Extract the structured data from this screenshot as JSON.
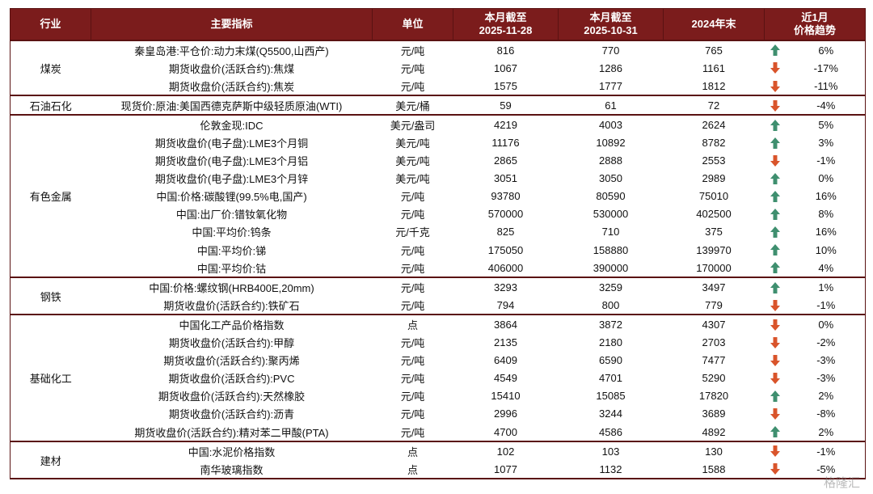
{
  "table": {
    "header": [
      "行业",
      "主要指标",
      "单位",
      "本月截至\n2025-11-28",
      "本月截至\n2025-10-31",
      "2024年末",
      "近1月\n价格趋势"
    ],
    "groups": [
      {
        "industry": "煤炭",
        "rows": [
          {
            "indicator": "秦皇岛港:平仓价:动力末煤(Q5500,山西产)",
            "unit": "元/吨",
            "values": [
              816,
              770,
              765
            ],
            "trend": "up",
            "change": "6%"
          },
          {
            "indicator": "期货收盘价(活跃合约):焦煤",
            "unit": "元/吨",
            "values": [
              1067,
              1286,
              1161
            ],
            "trend": "down",
            "change": "-17%"
          },
          {
            "indicator": "期货收盘价(活跃合约):焦炭",
            "unit": "元/吨",
            "values": [
              1575,
              1777,
              1812
            ],
            "trend": "down",
            "change": "-11%"
          }
        ]
      },
      {
        "industry": "石油石化",
        "rows": [
          {
            "indicator": "现货价:原油:美国西德克萨斯中级轻质原油(WTI)",
            "unit": "美元/桶",
            "values": [
              59,
              61,
              72
            ],
            "trend": "down",
            "change": "-4%"
          }
        ]
      },
      {
        "industry": "有色金属",
        "rows": [
          {
            "indicator": "伦敦金现:IDC",
            "unit": "美元/盎司",
            "values": [
              4219,
              4003,
              2624
            ],
            "trend": "up",
            "change": "5%"
          },
          {
            "indicator": "期货收盘价(电子盘):LME3个月铜",
            "unit": "美元/吨",
            "values": [
              11176,
              10892,
              8782
            ],
            "trend": "up",
            "change": "3%"
          },
          {
            "indicator": "期货收盘价(电子盘):LME3个月铝",
            "unit": "美元/吨",
            "values": [
              2865,
              2888,
              2553
            ],
            "trend": "down",
            "change": "-1%"
          },
          {
            "indicator": "期货收盘价(电子盘):LME3个月锌",
            "unit": "美元/吨",
            "values": [
              3051,
              3050,
              2989
            ],
            "trend": "up",
            "change": "0%"
          },
          {
            "indicator": "中国:价格:碳酸锂(99.5%电,国产)",
            "unit": "元/吨",
            "values": [
              93780,
              80590,
              75010
            ],
            "trend": "up",
            "change": "16%"
          },
          {
            "indicator": "中国:出厂价:镨钕氧化物",
            "unit": "元/吨",
            "values": [
              570000,
              530000,
              402500
            ],
            "trend": "up",
            "change": "8%"
          },
          {
            "indicator": "中国:平均价:钨条",
            "unit": "元/千克",
            "values": [
              825,
              710,
              375
            ],
            "trend": "up",
            "change": "16%"
          },
          {
            "indicator": "中国:平均价:锑",
            "unit": "元/吨",
            "values": [
              175050,
              158880,
              139970
            ],
            "trend": "up",
            "change": "10%"
          },
          {
            "indicator": "中国:平均价:钴",
            "unit": "元/吨",
            "values": [
              406000,
              390000,
              170000
            ],
            "trend": "up",
            "change": "4%"
          }
        ]
      },
      {
        "industry": "钢铁",
        "rows": [
          {
            "indicator": "中国:价格:螺纹钢(HRB400E,20mm)",
            "unit": "元/吨",
            "values": [
              3293,
              3259,
              3497
            ],
            "trend": "up",
            "change": "1%"
          },
          {
            "indicator": "期货收盘价(活跃合约):铁矿石",
            "unit": "元/吨",
            "values": [
              794,
              800,
              779
            ],
            "trend": "down",
            "change": "-1%"
          }
        ]
      },
      {
        "industry": "基础化工",
        "rows": [
          {
            "indicator": "中国化工产品价格指数",
            "unit": "点",
            "values": [
              3864,
              3872,
              4307
            ],
            "trend": "down",
            "change": "0%"
          },
          {
            "indicator": "期货收盘价(活跃合约):甲醇",
            "unit": "元/吨",
            "values": [
              2135,
              2180,
              2703
            ],
            "trend": "down",
            "change": "-2%"
          },
          {
            "indicator": "期货收盘价(活跃合约):聚丙烯",
            "unit": "元/吨",
            "values": [
              6409,
              6590,
              7477
            ],
            "trend": "down",
            "change": "-3%"
          },
          {
            "indicator": "期货收盘价(活跃合约):PVC",
            "unit": "元/吨",
            "values": [
              4549,
              4701,
              5290
            ],
            "trend": "down",
            "change": "-3%"
          },
          {
            "indicator": "期货收盘价(活跃合约):天然橡胶",
            "unit": "元/吨",
            "values": [
              15410,
              15085,
              17820
            ],
            "trend": "up",
            "change": "2%"
          },
          {
            "indicator": "期货收盘价(活跃合约):沥青",
            "unit": "元/吨",
            "values": [
              2996,
              3244,
              3689
            ],
            "trend": "down",
            "change": "-8%"
          },
          {
            "indicator": "期货收盘价(活跃合约):精对苯二甲酸(PTA)",
            "unit": "元/吨",
            "values": [
              4700,
              4586,
              4892
            ],
            "trend": "up",
            "change": "2%"
          }
        ]
      },
      {
        "industry": "建材",
        "rows": [
          {
            "indicator": "中国:水泥价格指数",
            "unit": "点",
            "values": [
              102,
              103,
              130
            ],
            "trend": "down",
            "change": "-1%"
          },
          {
            "indicator": "南华玻璃指数",
            "unit": "点",
            "values": [
              1077,
              1132,
              1588
            ],
            "trend": "down",
            "change": "-5%"
          }
        ]
      }
    ]
  },
  "watermark": "格隆汇"
}
